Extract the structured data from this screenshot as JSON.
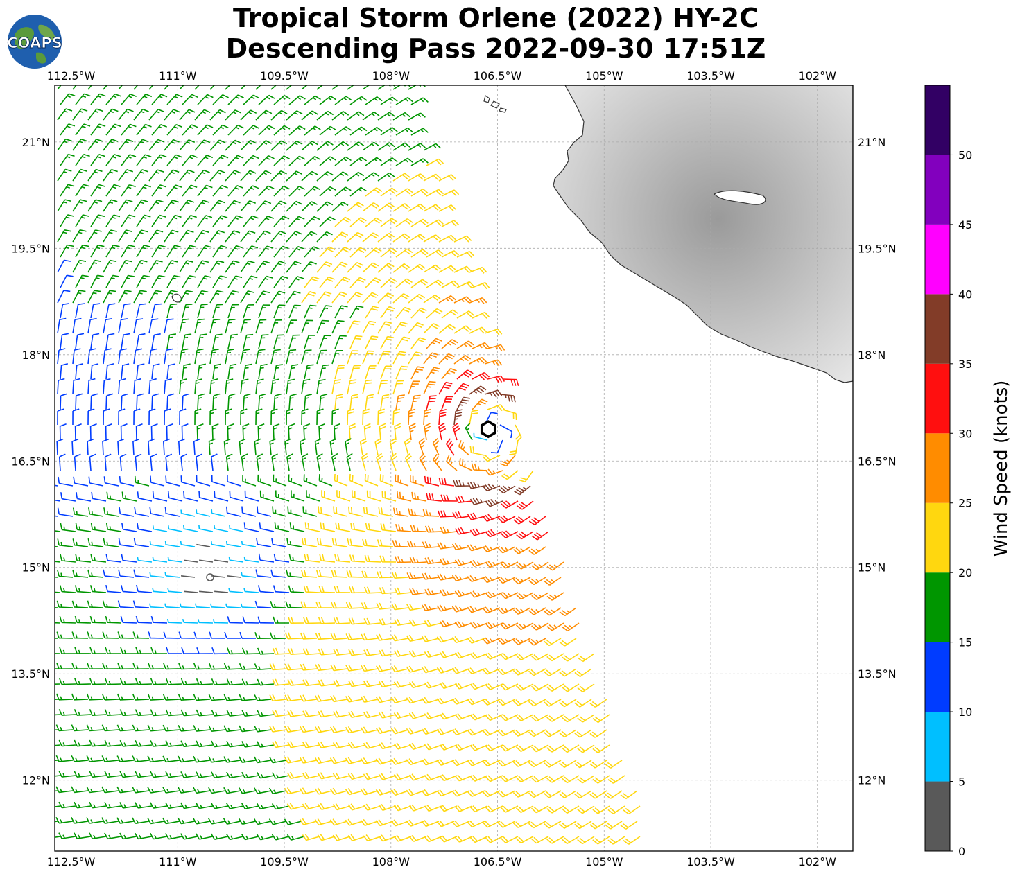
{
  "title": {
    "line1": "Tropical Storm Orlene (2022) HY-2C",
    "line2": "Descending Pass 2022-09-30 17:51Z"
  },
  "logo": {
    "text": "COAPS",
    "icon": "globe-icon"
  },
  "map": {
    "lon_labels": [
      "112.5°W",
      "111°W",
      "109.5°W",
      "108°W",
      "106.5°W",
      "105°W",
      "103.5°W",
      "102°W"
    ],
    "lon_values": [
      -112.5,
      -111,
      -109.5,
      -108,
      -106.5,
      -105,
      -103.5,
      -102
    ],
    "lat_labels": [
      "21°N",
      "19.5°N",
      "18°N",
      "16.5°N",
      "15°N",
      "13.5°N",
      "12°N"
    ],
    "lat_values": [
      21,
      19.5,
      18,
      16.5,
      15,
      13.5,
      12
    ],
    "lon_range": [
      -112.73,
      -101.5
    ],
    "lat_range": [
      11.0,
      21.8
    ],
    "storm_center": {
      "lon": -106.63,
      "lat": 16.95
    },
    "land_color": "#cfcfcf",
    "grid": true
  },
  "colorbar": {
    "label": "Wind Speed (knots)",
    "ticks": [
      "0",
      "5",
      "10",
      "15",
      "20",
      "25",
      "30",
      "35",
      "40",
      "45",
      "50"
    ],
    "bins": [
      {
        "min": 0,
        "max": 5,
        "color": "#595959"
      },
      {
        "min": 5,
        "max": 10,
        "color": "#00bfff"
      },
      {
        "min": 10,
        "max": 15,
        "color": "#003cff"
      },
      {
        "min": 15,
        "max": 20,
        "color": "#009600"
      },
      {
        "min": 20,
        "max": 25,
        "color": "#ffd70f"
      },
      {
        "min": 25,
        "max": 30,
        "color": "#ff8c00"
      },
      {
        "min": 30,
        "max": 35,
        "color": "#ff0f0f"
      },
      {
        "min": 35,
        "max": 40,
        "color": "#823c28"
      },
      {
        "min": 40,
        "max": 45,
        "color": "#ff00ff"
      },
      {
        "min": 45,
        "max": 50,
        "color": "#8200be"
      },
      {
        "min": 50,
        "max": 55,
        "color": "#320064"
      }
    ]
  }
}
